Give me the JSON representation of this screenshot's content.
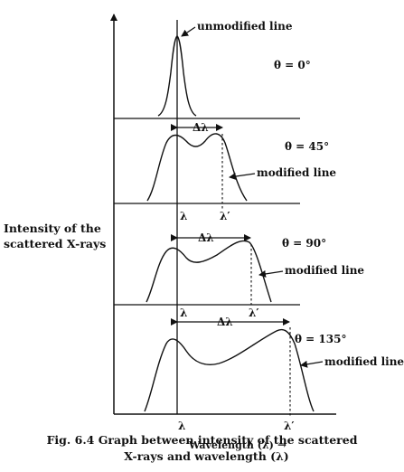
{
  "y_axis_label_line1": "Intensity of the",
  "y_axis_label_line2": "scattered X-rays",
  "x_axis_label": "Wavelength (λ)",
  "x_axis_arrow": "→",
  "unmodified_label": "unmodified line",
  "modified_label": "modified line",
  "lambda": "λ",
  "lambda_prime": "λ′",
  "delta_lambda": "Δλ",
  "panels": [
    {
      "theta": "θ = 0°"
    },
    {
      "theta": "θ = 45°"
    },
    {
      "theta": "θ = 90°"
    },
    {
      "theta": "θ = 135°"
    }
  ],
  "caption_line1": "Fig. 6.4 Graph between intensity of the scattered",
  "caption_line2": "X-rays and wavelength (λ)",
  "colors": {
    "ink": "#111111",
    "background": "#ffffff"
  }
}
